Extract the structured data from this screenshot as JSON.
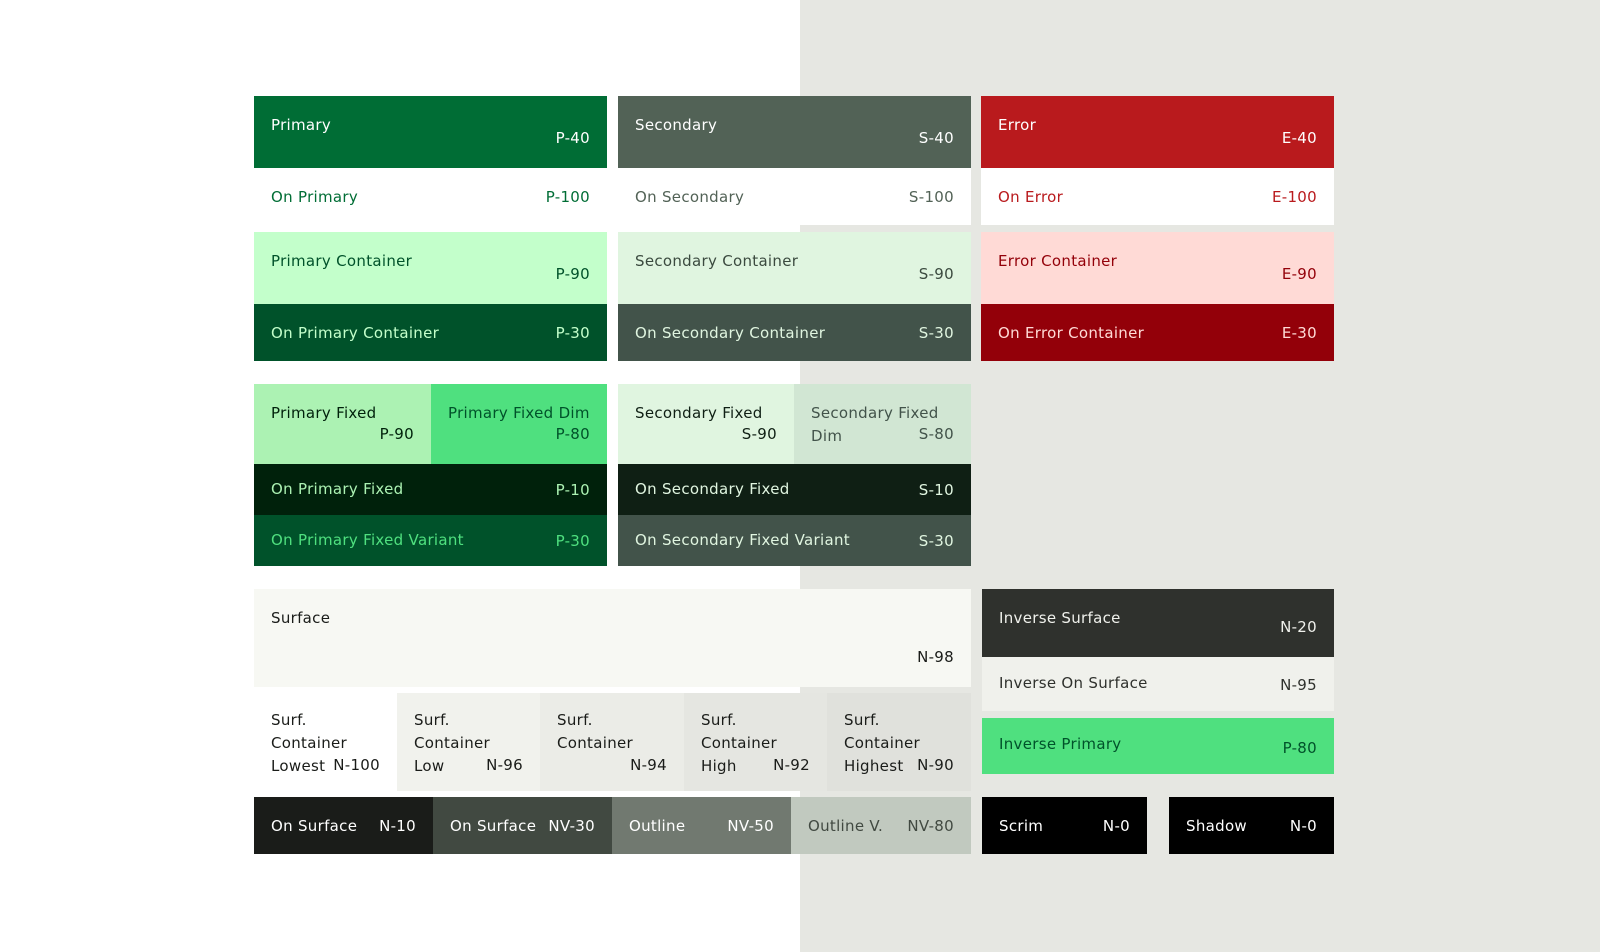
{
  "colors": {
    "background_left": "#ffffff",
    "background_right": "#e6e7e2",
    "primary": "#006d35",
    "secondary": "#526256",
    "error": "#b91a1d"
  },
  "roles": {
    "primary": {
      "name": "Primary",
      "code": "P-40"
    },
    "on_primary": {
      "name": "On Primary",
      "code": "P-100"
    },
    "primary_container": {
      "name": "Primary Container",
      "code": "P-90"
    },
    "on_primary_container": {
      "name": "On Primary Container",
      "code": "P-30"
    },
    "secondary": {
      "name": "Secondary",
      "code": "S-40"
    },
    "on_secondary": {
      "name": "On Secondary",
      "code": "S-100"
    },
    "secondary_container": {
      "name": "Secondary Container",
      "code": "S-90"
    },
    "on_secondary_container": {
      "name": "On Secondary Container",
      "code": "S-30"
    },
    "error": {
      "name": "Error",
      "code": "E-40"
    },
    "on_error": {
      "name": "On Error",
      "code": "E-100"
    },
    "error_container": {
      "name": "Error Container",
      "code": "E-90"
    },
    "on_error_container": {
      "name": "On Error Container",
      "code": "E-30"
    },
    "primary_fixed": {
      "name": "Primary Fixed",
      "code": "P-90"
    },
    "primary_fixed_dim": {
      "name": "Primary Fixed Dim",
      "code": "P-80"
    },
    "on_primary_fixed": {
      "name": "On Primary Fixed",
      "code": "P-10"
    },
    "on_primary_fixed_variant": {
      "name": "On Primary Fixed Variant",
      "code": "P-30"
    },
    "secondary_fixed": {
      "name": "Secondary Fixed",
      "code": "S-90"
    },
    "secondary_fixed_dim": {
      "name": "Secondary Fixed Dim",
      "code": "S-80"
    },
    "on_secondary_fixed": {
      "name": "On Secondary Fixed",
      "code": "S-10"
    },
    "on_secondary_fixed_variant": {
      "name": "On Secondary Fixed Variant",
      "code": "S-30"
    },
    "surface": {
      "name": "Surface",
      "code": "N-98"
    },
    "surf_container_lowest": {
      "name": "Surf. Container Lowest",
      "code": "N-100"
    },
    "surf_container_low": {
      "name": "Surf. Container Low",
      "code": "N-96"
    },
    "surf_container": {
      "name": "Surf. Container",
      "code": "N-94"
    },
    "surf_container_high": {
      "name": "Surf. Container High",
      "code": "N-92"
    },
    "surf_container_highest": {
      "name": "Surf. Container Highest",
      "code": "N-90"
    },
    "on_surface": {
      "name": "On Surface",
      "code": "N-10"
    },
    "on_surface_variant": {
      "name": "On Surface",
      "code": "NV-30"
    },
    "outline": {
      "name": "Outline",
      "code": "NV-50"
    },
    "outline_variant": {
      "name": "Outline V.",
      "code": "NV-80"
    },
    "inverse_surface": {
      "name": "Inverse Surface",
      "code": "N-20"
    },
    "inverse_on_surface": {
      "name": "Inverse On Surface",
      "code": "N-95"
    },
    "inverse_primary": {
      "name": "Inverse Primary",
      "code": "P-80"
    },
    "scrim": {
      "name": "Scrim",
      "code": "N-0"
    },
    "shadow": {
      "name": "Shadow",
      "code": "N-0"
    }
  }
}
